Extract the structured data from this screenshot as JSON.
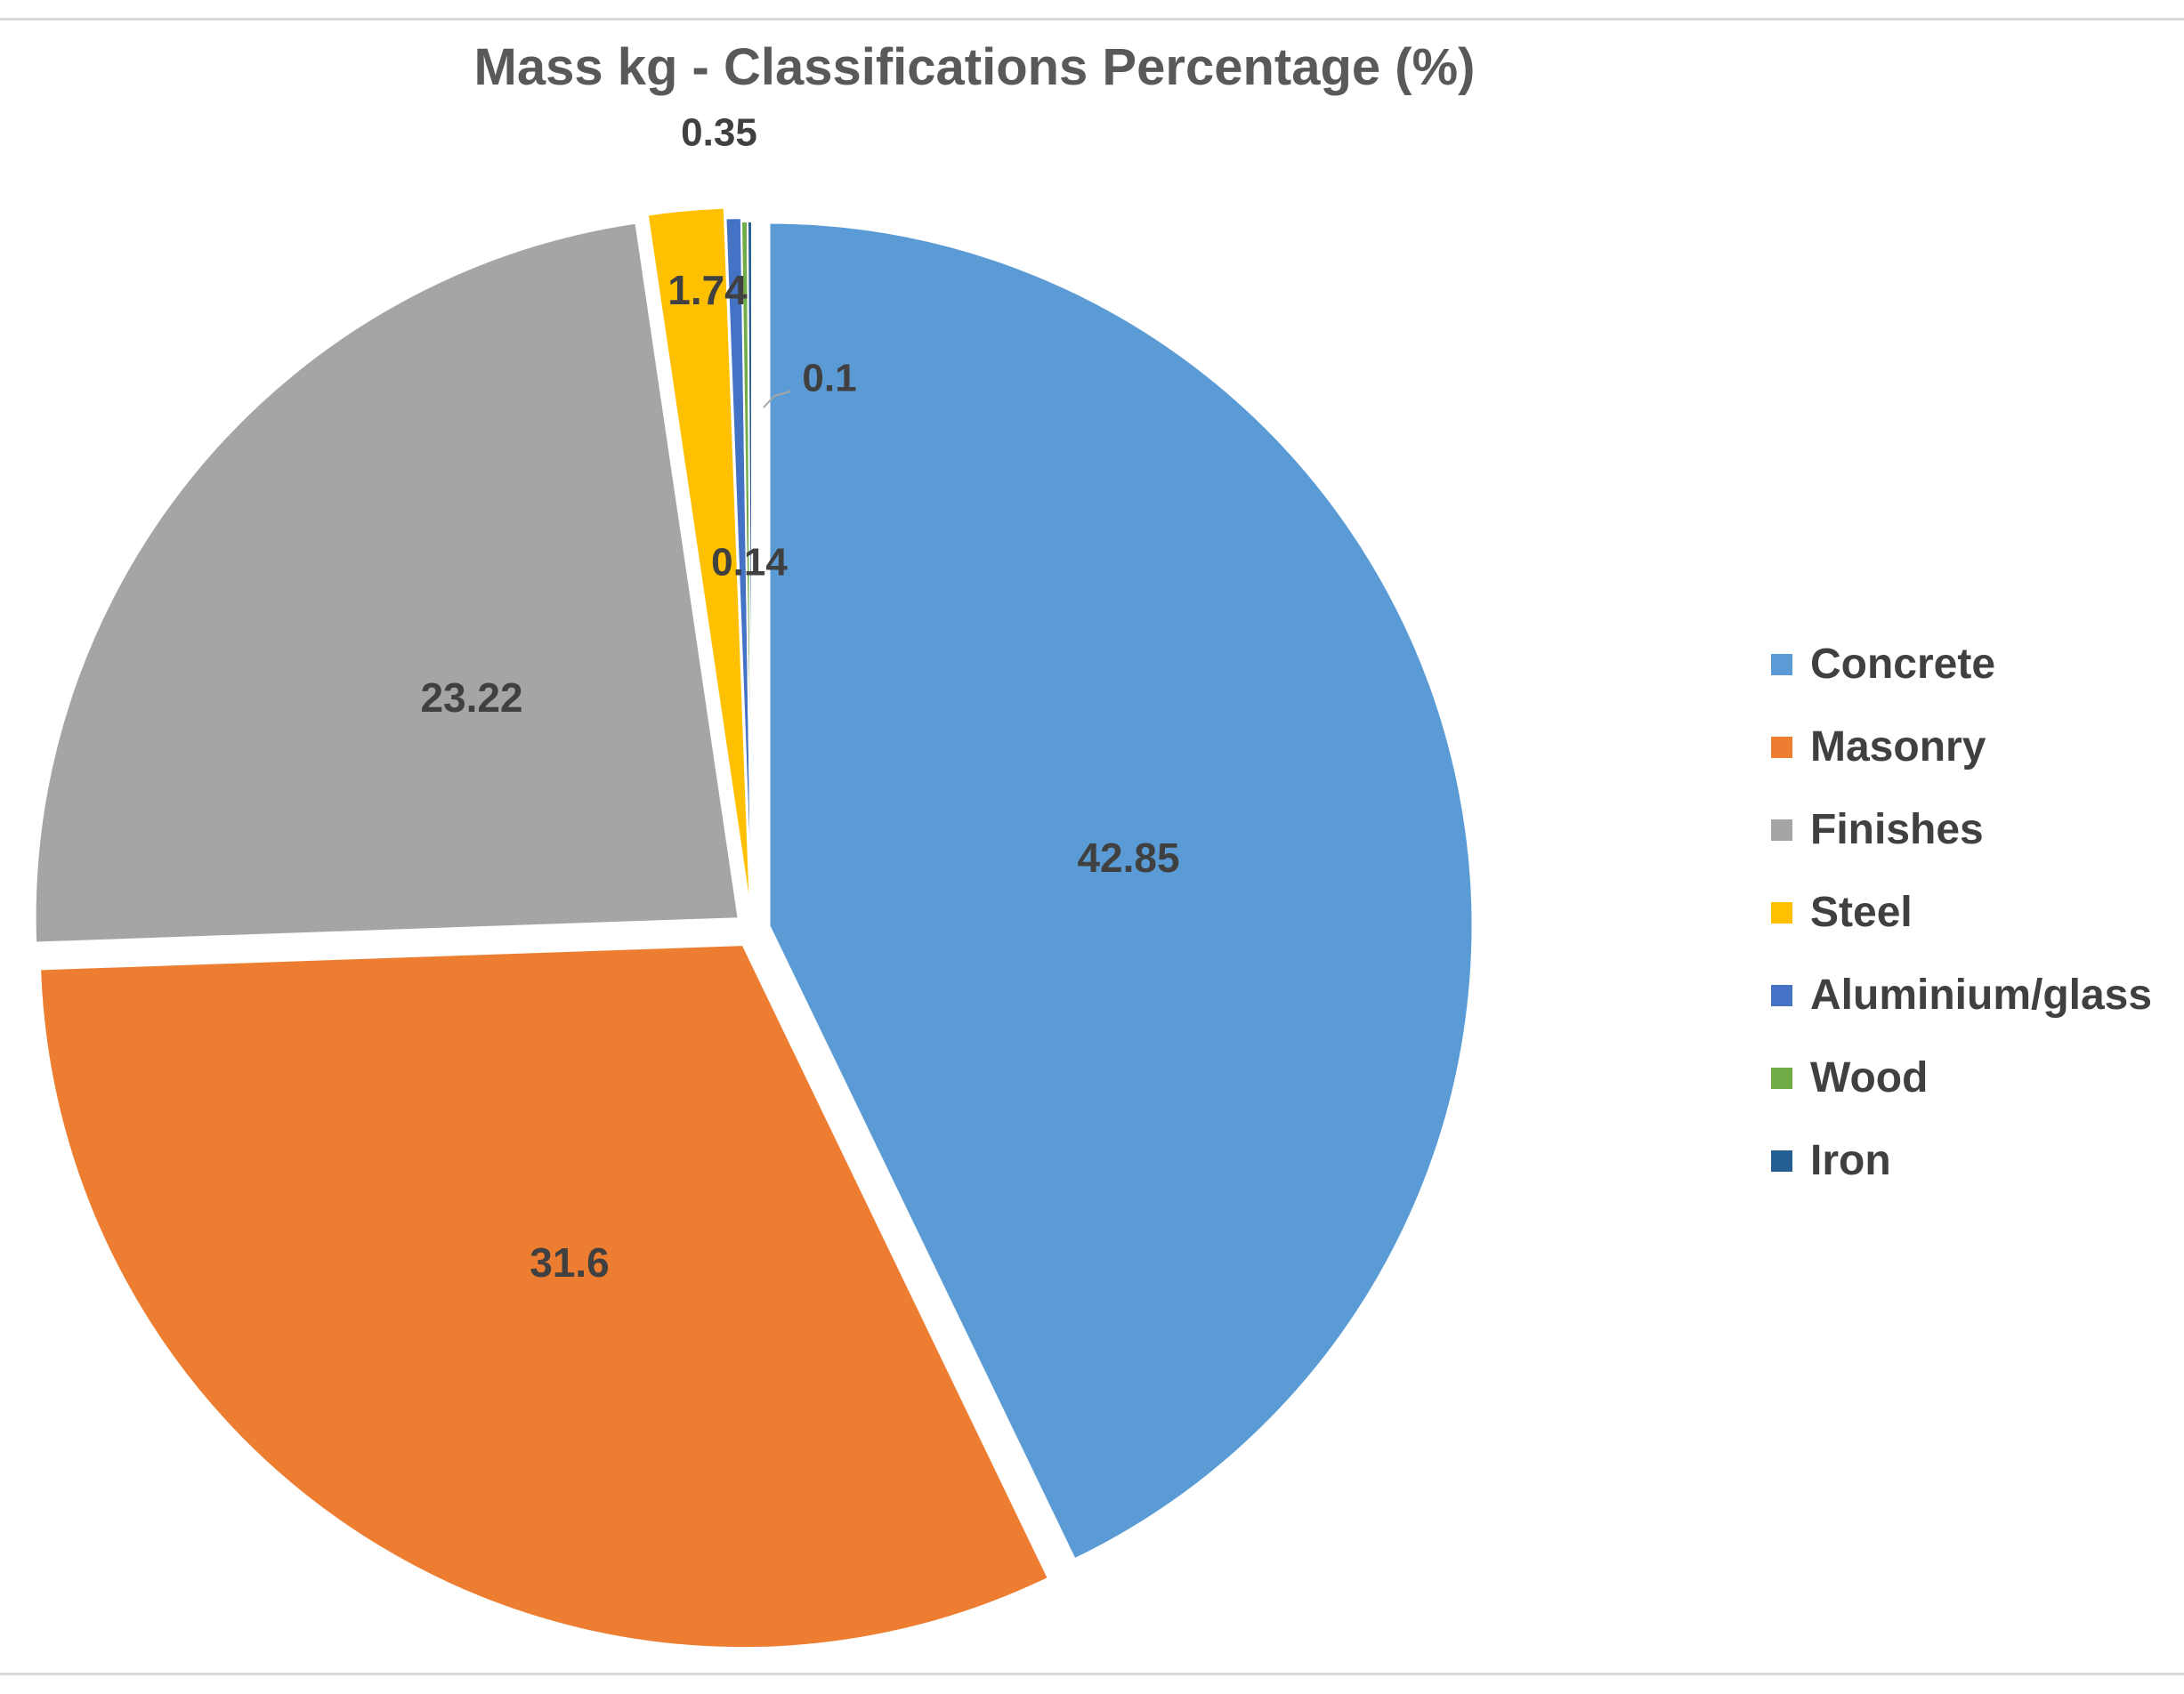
{
  "chart_data": {
    "type": "pie",
    "title": "Mass kg - Classifications Percentage (%)",
    "unit": "%",
    "slices": [
      {
        "label": "Concrete",
        "value": 42.85,
        "color": "#5b9bd5",
        "data_label": "42.85"
      },
      {
        "label": "Masonry",
        "value": 31.6,
        "color": "#ed7d31",
        "data_label": "31.6"
      },
      {
        "label": "Finishes",
        "value": 23.22,
        "color": "#a5a5a5",
        "data_label": "23.22"
      },
      {
        "label": "Steel",
        "value": 1.74,
        "color": "#ffc000",
        "data_label": "1.74"
      },
      {
        "label": "Aluminium/glass",
        "value": 0.35,
        "color": "#4472c4",
        "data_label": "0.35"
      },
      {
        "label": "Wood",
        "value": 0.14,
        "color": "#70ad47",
        "data_label": "0.14"
      },
      {
        "label": "Iron",
        "value": 0.1,
        "color": "#255e91",
        "data_label": "0.1"
      }
    ],
    "legend_position": "right"
  }
}
